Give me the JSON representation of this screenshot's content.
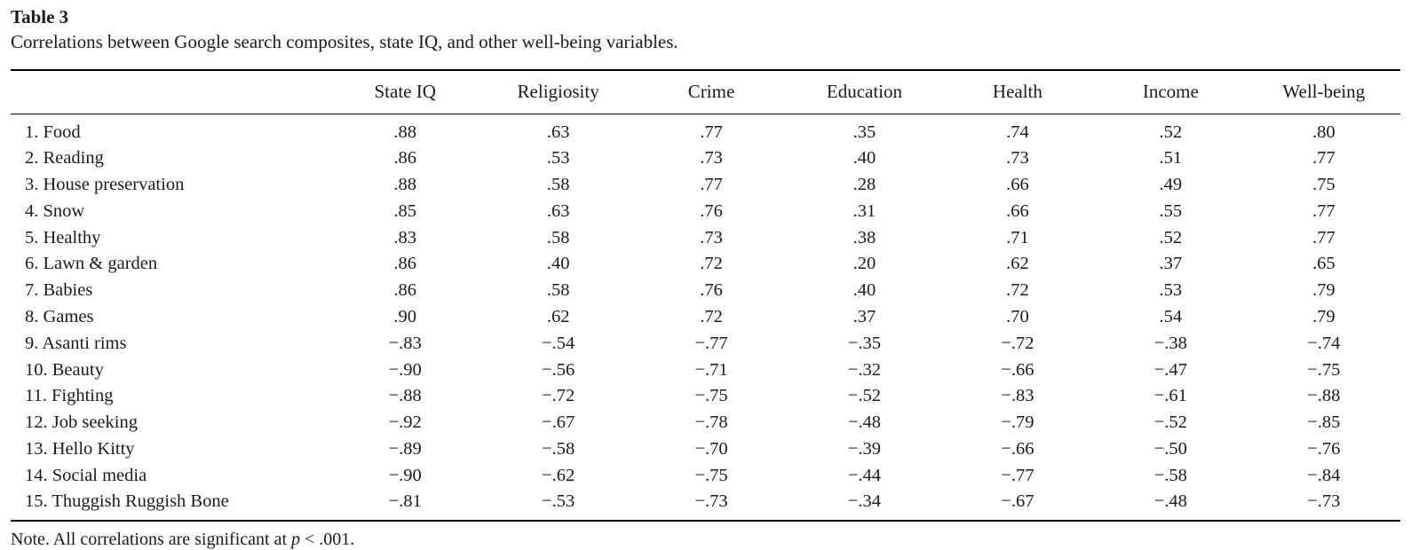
{
  "table": {
    "label": "Table 3",
    "caption": "Correlations between Google search composites, state IQ, and other well-being variables.",
    "columns": [
      "State IQ",
      "Religiosity",
      "Crime",
      "Education",
      "Health",
      "Income",
      "Well-being"
    ],
    "rows": [
      {
        "name": "1. Food",
        "values": [
          ".88",
          ".63",
          ".77",
          ".35",
          ".74",
          ".52",
          ".80"
        ]
      },
      {
        "name": "2. Reading",
        "values": [
          ".86",
          ".53",
          ".73",
          ".40",
          ".73",
          ".51",
          ".77"
        ]
      },
      {
        "name": "3. House preservation",
        "values": [
          ".88",
          ".58",
          ".77",
          ".28",
          ".66",
          ".49",
          ".75"
        ]
      },
      {
        "name": "4. Snow",
        "values": [
          ".85",
          ".63",
          ".76",
          ".31",
          ".66",
          ".55",
          ".77"
        ]
      },
      {
        "name": "5. Healthy",
        "values": [
          ".83",
          ".58",
          ".73",
          ".38",
          ".71",
          ".52",
          ".77"
        ]
      },
      {
        "name": "6. Lawn & garden",
        "values": [
          ".86",
          ".40",
          ".72",
          ".20",
          ".62",
          ".37",
          ".65"
        ]
      },
      {
        "name": "7. Babies",
        "values": [
          ".86",
          ".58",
          ".76",
          ".40",
          ".72",
          ".53",
          ".79"
        ]
      },
      {
        "name": "8. Games",
        "values": [
          ".90",
          ".62",
          ".72",
          ".37",
          ".70",
          ".54",
          ".79"
        ]
      },
      {
        "name": "9. Asanti rims",
        "values": [
          "−.83",
          "−.54",
          "−.77",
          "−.35",
          "−.72",
          "−.38",
          "−.74"
        ]
      },
      {
        "name": "10. Beauty",
        "values": [
          "−.90",
          "−.56",
          "−.71",
          "−.32",
          "−.66",
          "−.47",
          "−.75"
        ]
      },
      {
        "name": "11. Fighting",
        "values": [
          "−.88",
          "−.72",
          "−.75",
          "−.52",
          "−.83",
          "−.61",
          "−.88"
        ]
      },
      {
        "name": "12. Job seeking",
        "values": [
          "−.92",
          "−.67",
          "−.78",
          "−.48",
          "−.79",
          "−.52",
          "−.85"
        ]
      },
      {
        "name": "13. Hello Kitty",
        "values": [
          "−.89",
          "−.58",
          "−.70",
          "−.39",
          "−.66",
          "−.50",
          "−.76"
        ]
      },
      {
        "name": "14. Social media",
        "values": [
          "−.90",
          "−.62",
          "−.75",
          "−.44",
          "−.77",
          "−.58",
          "−.84"
        ]
      },
      {
        "name": "15. Thuggish Ruggish Bone",
        "values": [
          "−.81",
          "−.53",
          "−.73",
          "−.34",
          "−.67",
          "−.48",
          "−.73"
        ]
      }
    ],
    "note": {
      "prefix": "Note. All correlations are significant at ",
      "italic": "p",
      "suffix": " < .001."
    }
  },
  "chart_data": {
    "type": "table",
    "title": "Table 3. Correlations between Google search composites, state IQ, and other well-being variables.",
    "columns": [
      "State IQ",
      "Religiosity",
      "Crime",
      "Education",
      "Health",
      "Income",
      "Well-being"
    ],
    "row_labels": [
      "1. Food",
      "2. Reading",
      "3. House preservation",
      "4. Snow",
      "5. Healthy",
      "6. Lawn & garden",
      "7. Babies",
      "8. Games",
      "9. Asanti rims",
      "10. Beauty",
      "11. Fighting",
      "12. Job seeking",
      "13. Hello Kitty",
      "14. Social media",
      "15. Thuggish Ruggish Bone"
    ],
    "values": [
      [
        0.88,
        0.63,
        0.77,
        0.35,
        0.74,
        0.52,
        0.8
      ],
      [
        0.86,
        0.53,
        0.73,
        0.4,
        0.73,
        0.51,
        0.77
      ],
      [
        0.88,
        0.58,
        0.77,
        0.28,
        0.66,
        0.49,
        0.75
      ],
      [
        0.85,
        0.63,
        0.76,
        0.31,
        0.66,
        0.55,
        0.77
      ],
      [
        0.83,
        0.58,
        0.73,
        0.38,
        0.71,
        0.52,
        0.77
      ],
      [
        0.86,
        0.4,
        0.72,
        0.2,
        0.62,
        0.37,
        0.65
      ],
      [
        0.86,
        0.58,
        0.76,
        0.4,
        0.72,
        0.53,
        0.79
      ],
      [
        0.9,
        0.62,
        0.72,
        0.37,
        0.7,
        0.54,
        0.79
      ],
      [
        -0.83,
        -0.54,
        -0.77,
        -0.35,
        -0.72,
        -0.38,
        -0.74
      ],
      [
        -0.9,
        -0.56,
        -0.71,
        -0.32,
        -0.66,
        -0.47,
        -0.75
      ],
      [
        -0.88,
        -0.72,
        -0.75,
        -0.52,
        -0.83,
        -0.61,
        -0.88
      ],
      [
        -0.92,
        -0.67,
        -0.78,
        -0.48,
        -0.79,
        -0.52,
        -0.85
      ],
      [
        -0.89,
        -0.58,
        -0.7,
        -0.39,
        -0.66,
        -0.5,
        -0.76
      ],
      [
        -0.9,
        -0.62,
        -0.75,
        -0.44,
        -0.77,
        -0.58,
        -0.84
      ],
      [
        -0.81,
        -0.53,
        -0.73,
        -0.34,
        -0.67,
        -0.48,
        -0.73
      ]
    ],
    "note": "Note. All correlations are significant at p < .001."
  }
}
